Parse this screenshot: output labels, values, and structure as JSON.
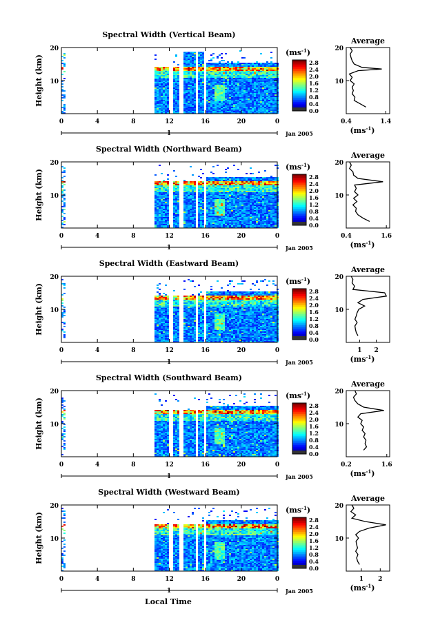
{
  "chart_data": [
    {
      "type": "heatmap",
      "title": "Spectral Width (Vertical Beam)",
      "ylabel": "Height (km)",
      "xticks": [
        "0",
        "4",
        "8",
        "12",
        "16",
        "20",
        "0"
      ],
      "yticks": [
        "20",
        "10"
      ],
      "ylim": [
        0,
        20
      ],
      "xlim": [
        0,
        24
      ],
      "day_label": "1",
      "date_label": "Jan 2005",
      "colorbar": {
        "unit": "(ms",
        "ticks": [
          "2.8",
          "2.4",
          "2.0",
          "1.6",
          "1.2",
          "0.8",
          "0.4",
          "0.0"
        ]
      },
      "avg": {
        "title": "Average",
        "xticks": [
          "0.4",
          "1.4"
        ],
        "xlabel": "(ms",
        "xlim": [
          0.4,
          1.5
        ],
        "profile": [
          [
            0.9,
            2
          ],
          [
            0.75,
            3
          ],
          [
            0.6,
            4
          ],
          [
            0.62,
            5
          ],
          [
            0.55,
            6
          ],
          [
            0.58,
            7
          ],
          [
            0.55,
            8
          ],
          [
            0.6,
            9
          ],
          [
            0.5,
            10
          ],
          [
            0.55,
            11
          ],
          [
            0.48,
            12
          ],
          [
            0.7,
            13
          ],
          [
            1.3,
            13.5
          ],
          [
            0.8,
            14
          ],
          [
            0.6,
            15
          ],
          [
            0.55,
            16
          ],
          [
            0.52,
            17
          ],
          [
            0.5,
            18
          ],
          [
            0.55,
            19
          ],
          [
            0.5,
            20
          ]
        ]
      }
    },
    {
      "type": "heatmap",
      "title": "Spectral Width (Northward Beam)",
      "ylabel": "Height (km)",
      "xticks": [
        "0",
        "4",
        "8",
        "12",
        "16",
        "20",
        "0"
      ],
      "yticks": [
        "20",
        "10"
      ],
      "ylim": [
        0,
        20
      ],
      "xlim": [
        0,
        24
      ],
      "day_label": "1",
      "date_label": "Jan 2005",
      "colorbar": {
        "unit": "(ms",
        "ticks": [
          "2.8",
          "2.4",
          "2.0",
          "1.6",
          "1.2",
          "0.8",
          "0.4",
          "0.0"
        ]
      },
      "avg": {
        "title": "Average",
        "xticks": [
          "0.4",
          "1.6"
        ],
        "xlabel": "(ms",
        "xlim": [
          0.4,
          1.7
        ],
        "profile": [
          [
            1.1,
            2
          ],
          [
            0.9,
            3
          ],
          [
            0.75,
            4
          ],
          [
            0.68,
            5
          ],
          [
            0.7,
            6
          ],
          [
            0.6,
            7
          ],
          [
            0.72,
            8
          ],
          [
            0.62,
            9
          ],
          [
            0.75,
            10
          ],
          [
            0.65,
            11
          ],
          [
            0.7,
            12
          ],
          [
            0.65,
            13
          ],
          [
            1.5,
            14
          ],
          [
            0.75,
            15
          ],
          [
            0.62,
            16
          ],
          [
            0.6,
            17
          ],
          [
            0.5,
            18
          ],
          [
            0.55,
            19
          ],
          [
            0.5,
            20
          ]
        ]
      }
    },
    {
      "type": "heatmap",
      "title": "Spectral Width (Eastward Beam)",
      "ylabel": "Height (km)",
      "xticks": [
        "0",
        "4",
        "8",
        "12",
        "16",
        "20",
        "0"
      ],
      "yticks": [
        "20",
        "10"
      ],
      "ylim": [
        0,
        20
      ],
      "xlim": [
        0,
        24
      ],
      "day_label": "1",
      "date_label": "Jan 2005",
      "colorbar": {
        "unit": "(ms",
        "ticks": [
          "2.8",
          "2.4",
          "2.0",
          "1.6",
          "1.2",
          "0.8",
          "0.4",
          "0.0"
        ]
      },
      "avg": {
        "title": "Average",
        "xticks": [
          "1",
          "2"
        ],
        "xlabel": "(ms",
        "xlim": [
          0.2,
          2.8
        ],
        "profile": [
          [
            0.9,
            2
          ],
          [
            0.8,
            3
          ],
          [
            0.75,
            4
          ],
          [
            0.72,
            5
          ],
          [
            0.85,
            6
          ],
          [
            0.72,
            7
          ],
          [
            0.8,
            8
          ],
          [
            0.85,
            9
          ],
          [
            0.95,
            10
          ],
          [
            1.3,
            11
          ],
          [
            0.9,
            12
          ],
          [
            1.2,
            13
          ],
          [
            2.6,
            14
          ],
          [
            2.5,
            15
          ],
          [
            0.6,
            16
          ],
          [
            0.7,
            17
          ],
          [
            0.55,
            18
          ],
          [
            0.6,
            19
          ],
          [
            0.5,
            20
          ]
        ]
      }
    },
    {
      "type": "heatmap",
      "title": "Spectral Width (Southward Beam)",
      "ylabel": "Height (km)",
      "xticks": [
        "0",
        "4",
        "8",
        "12",
        "16",
        "20",
        "0"
      ],
      "yticks": [
        "20",
        "10"
      ],
      "ylim": [
        0,
        20
      ],
      "xlim": [
        0,
        24
      ],
      "day_label": "1",
      "date_label": "Jan 2005",
      "colorbar": {
        "unit": "(ms",
        "ticks": [
          "2.8",
          "2.4",
          "2.0",
          "1.6",
          "1.2",
          "0.8",
          "0.4",
          "0.0"
        ]
      },
      "avg": {
        "title": "Average",
        "xticks": [
          "0.2",
          "1.6"
        ],
        "xlabel": "(ms",
        "xlim": [
          0.2,
          1.7
        ],
        "profile": [
          [
            0.8,
            2
          ],
          [
            0.9,
            3
          ],
          [
            0.85,
            4
          ],
          [
            0.88,
            5
          ],
          [
            0.8,
            6
          ],
          [
            0.85,
            7
          ],
          [
            0.75,
            8
          ],
          [
            0.8,
            9
          ],
          [
            0.7,
            10
          ],
          [
            0.75,
            11
          ],
          [
            0.6,
            12
          ],
          [
            0.7,
            13
          ],
          [
            1.5,
            14
          ],
          [
            0.8,
            15
          ],
          [
            0.6,
            16
          ],
          [
            0.5,
            17
          ],
          [
            0.45,
            18
          ],
          [
            0.55,
            19
          ],
          [
            0.5,
            20
          ]
        ]
      }
    },
    {
      "type": "heatmap",
      "title": "Spectral Width (Westward Beam)",
      "ylabel": "Height (km)",
      "xticks": [
        "0",
        "4",
        "8",
        "12",
        "16",
        "20",
        "0"
      ],
      "yticks": [
        "20",
        "10"
      ],
      "ylim": [
        0,
        20
      ],
      "xlim": [
        0,
        24
      ],
      "day_label": "1",
      "date_label": "Jan 2005",
      "colorbar": {
        "unit": "(ms",
        "ticks": [
          "2.8",
          "2.4",
          "2.0",
          "1.6",
          "1.2",
          "0.8",
          "0.4",
          "0.0"
        ]
      },
      "avg": {
        "title": "Average",
        "xticks": [
          "1",
          "2"
        ],
        "xlabel": "(ms",
        "xlim": [
          0.2,
          2.5
        ],
        "profile": [
          [
            0.9,
            2
          ],
          [
            0.8,
            3
          ],
          [
            0.75,
            4
          ],
          [
            0.82,
            5
          ],
          [
            0.7,
            6
          ],
          [
            0.8,
            7
          ],
          [
            0.75,
            8
          ],
          [
            0.72,
            9
          ],
          [
            0.85,
            10
          ],
          [
            0.7,
            11
          ],
          [
            0.9,
            12
          ],
          [
            1.4,
            13
          ],
          [
            2.3,
            14
          ],
          [
            1.2,
            15
          ],
          [
            0.5,
            16
          ],
          [
            0.7,
            17
          ],
          [
            0.45,
            18
          ],
          [
            0.6,
            19
          ],
          [
            0.5,
            20
          ]
        ]
      }
    }
  ],
  "xlabel_bottom": "Local Time"
}
